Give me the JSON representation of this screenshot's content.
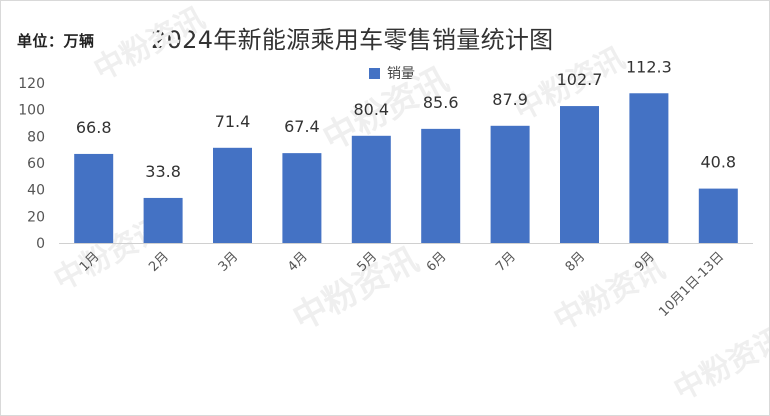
{
  "unit_label": "单位：万辆",
  "watermark_text": "中粉资讯",
  "chart_data": {
    "type": "bar",
    "title": "2024年新能源乘用车零售销量统计图",
    "xlabel": "",
    "ylabel": "",
    "categories": [
      "1月",
      "2月",
      "3月",
      "4月",
      "5月",
      "6月",
      "7月",
      "8月",
      "9月",
      "10月1日-13日"
    ],
    "series": [
      {
        "name": "销量",
        "values": [
          66.8,
          33.8,
          71.4,
          67.4,
          80.4,
          85.6,
          87.9,
          102.7,
          112.3,
          40.8
        ],
        "color": "#4472c4"
      }
    ],
    "ylim": [
      0,
      120
    ],
    "yticks": [
      0,
      20,
      40,
      60,
      80,
      100,
      120
    ],
    "grid": false,
    "legend_position": "top"
  }
}
